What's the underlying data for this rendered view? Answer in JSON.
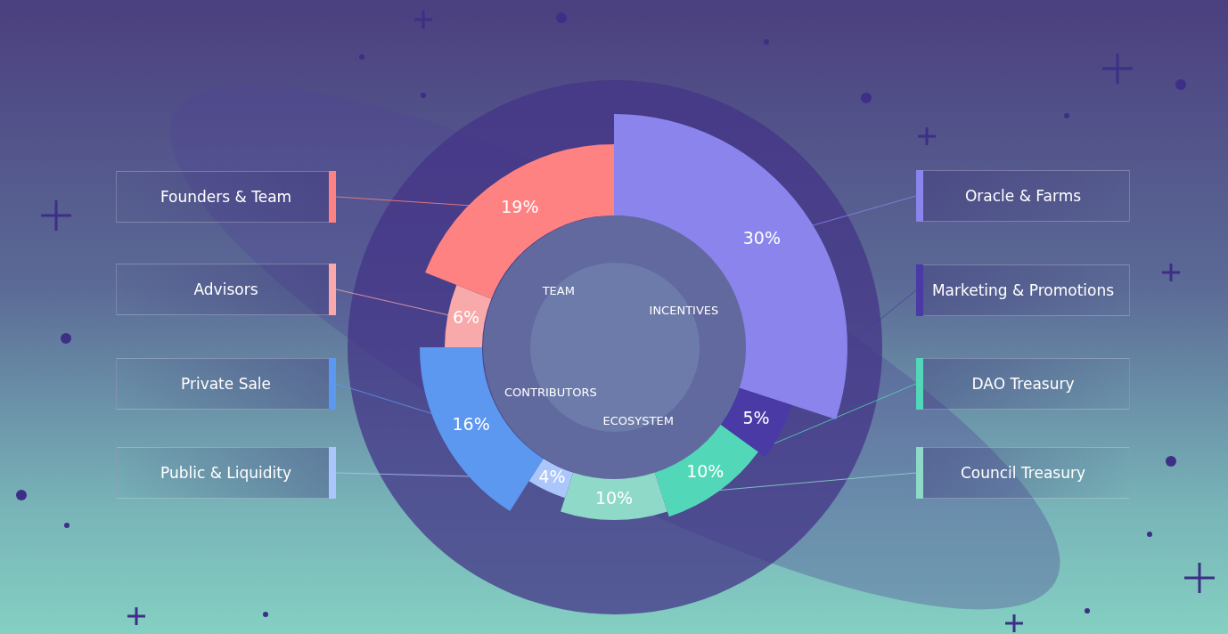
{
  "chart_data": {
    "type": "doughnut",
    "categories": [
      "Oracle & Farms",
      "Marketing & Promotions",
      "DAO Treasury",
      "Council Treasury",
      "Public & Liquidity",
      "Private Sale",
      "Advisors",
      "Founders & Team"
    ],
    "values": [
      30,
      5,
      10,
      10,
      4,
      16,
      6,
      19
    ],
    "value_labels": [
      "30%",
      "5%",
      "10%",
      "10%",
      "4%",
      "16%",
      "6%",
      "19%"
    ],
    "colors": [
      "#8a84ec",
      "#4a3aa6",
      "#52d8b8",
      "#8fd9c9",
      "#abc6fb",
      "#5c97f0",
      "#f8a9a9",
      "#ff8282"
    ],
    "data_labels": true,
    "groups": [
      {
        "name": "INCENTIVES",
        "members": [
          "Oracle & Farms",
          "Marketing & Promotions"
        ]
      },
      {
        "name": "ECOSYSTEM",
        "members": [
          "DAO Treasury",
          "Council Treasury"
        ]
      },
      {
        "name": "CONTRIBUTORS",
        "members": [
          "Public & Liquidity",
          "Private Sale"
        ]
      },
      {
        "name": "TEAM",
        "members": [
          "Advisors",
          "Founders & Team"
        ]
      }
    ]
  }
}
